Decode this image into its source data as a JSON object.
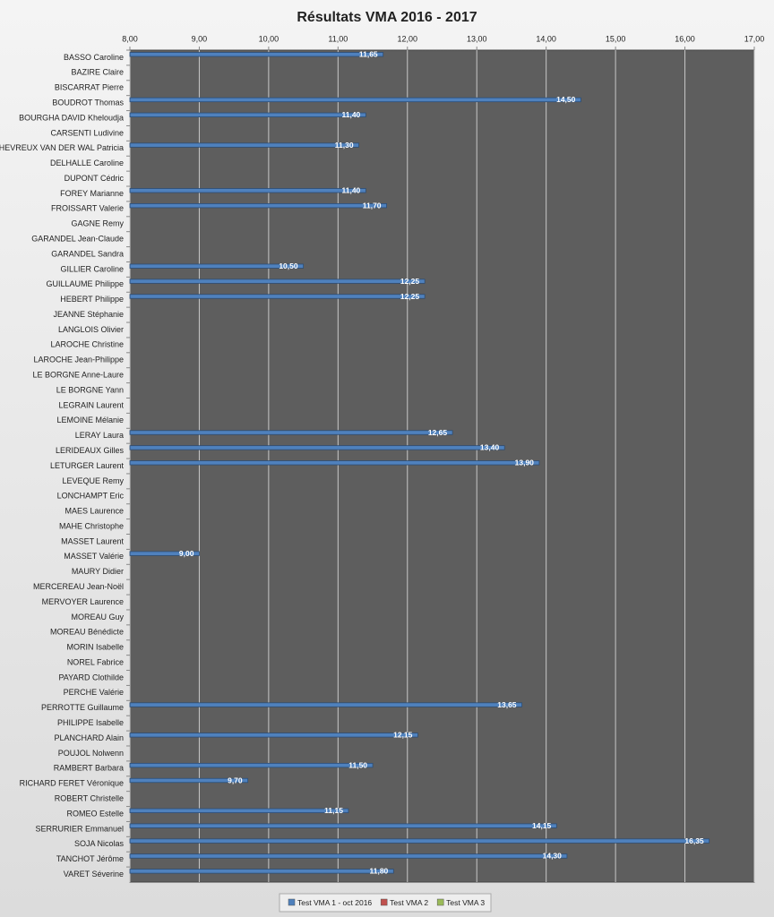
{
  "chart_data": {
    "type": "bar",
    "orientation": "horizontal",
    "title": "Résultats VMA 2016 - 2017",
    "categories": [
      "BASSO Caroline",
      "BAZIRE Claire",
      "BISCARRAT Pierre",
      "BOUDROT Thomas",
      "BOURGHA DAVID Kheloudja",
      "CARSENTI Ludivine",
      "CHEVREUX VAN DER WAL Patricia",
      "DELHALLE Caroline",
      "DUPONT Cédric",
      "FOREY Marianne",
      "FROISSART Valerie",
      "GAGNE Remy",
      "GARANDEL Jean-Claude",
      "GARANDEL Sandra",
      "GILLIER Caroline",
      "GUILLAUME Philippe",
      "HEBERT Philippe",
      "JEANNE Stéphanie",
      "LANGLOIS Olivier",
      "LAROCHE Christine",
      "LAROCHE Jean-Philippe",
      "LE BORGNE Anne-Laure",
      "LE BORGNE Yann",
      "LEGRAIN Laurent",
      "LEMOINE Mélanie",
      "LERAY Laura",
      "LERIDEAUX Gilles",
      "LETURGER Laurent",
      "LEVEQUE Remy",
      "LONCHAMPT Eric",
      "MAES Laurence",
      "MAHE Christophe",
      "MASSET Laurent",
      "MASSET Valérie",
      "MAURY Didier",
      "MERCEREAU Jean-Noël",
      "MERVOYER Laurence",
      "MOREAU Guy",
      "MOREAU Bénédicte",
      "MORIN Isabelle",
      "NOREL Fabrice",
      "PAYARD Clothilde",
      "PERCHE Valérie",
      "PERROTTE Guillaume",
      "PHILIPPE Isabelle",
      "PLANCHARD Alain",
      "POUJOL Nolwenn",
      "RAMBERT Barbara",
      "RICHARD FERET Véronique",
      "ROBERT Christelle",
      "ROMEO Estelle",
      "SERRURIER Emmanuel",
      "SOJA Nicolas",
      "TANCHOT Jérôme",
      "VARET Séverine"
    ],
    "series": [
      {
        "name": "Test VMA 1 - oct 2016",
        "color": "#4f81bd",
        "values": [
          11.65,
          null,
          null,
          14.5,
          11.4,
          null,
          11.3,
          null,
          null,
          11.4,
          11.7,
          null,
          null,
          null,
          10.5,
          12.25,
          12.25,
          null,
          null,
          null,
          null,
          null,
          null,
          null,
          null,
          12.65,
          13.4,
          13.9,
          null,
          null,
          null,
          null,
          null,
          9.0,
          null,
          null,
          null,
          null,
          null,
          null,
          null,
          null,
          null,
          13.65,
          null,
          12.15,
          null,
          11.5,
          9.7,
          null,
          11.15,
          14.15,
          16.35,
          14.3,
          11.8
        ],
        "value_labels": [
          "11,65",
          null,
          null,
          "14,50",
          "11,40",
          null,
          "11,30",
          null,
          null,
          "11,40",
          "11,70",
          null,
          null,
          null,
          "10,50",
          "12,25",
          "12,25",
          null,
          null,
          null,
          null,
          null,
          null,
          null,
          null,
          "12,65",
          "13,40",
          "13,90",
          null,
          null,
          null,
          null,
          null,
          "9,00",
          null,
          null,
          null,
          null,
          null,
          null,
          null,
          null,
          null,
          "13,65",
          null,
          "12,15",
          null,
          "11,50",
          "9,70",
          null,
          "11,15",
          "14,15",
          "16,35",
          "14,30",
          "11,80"
        ]
      },
      {
        "name": "Test VMA 2",
        "color": "#c0504d",
        "values": [
          null,
          null,
          null,
          null,
          null,
          null,
          null,
          null,
          null,
          null,
          null,
          null,
          null,
          null,
          null,
          null,
          null,
          null,
          null,
          null,
          null,
          null,
          null,
          null,
          null,
          null,
          null,
          null,
          null,
          null,
          null,
          null,
          null,
          null,
          null,
          null,
          null,
          null,
          null,
          null,
          null,
          null,
          null,
          null,
          null,
          null,
          null,
          null,
          null,
          null,
          null,
          null,
          null,
          null,
          null
        ]
      },
      {
        "name": "Test VMA 3",
        "color": "#9bbb59",
        "values": [
          null,
          null,
          null,
          null,
          null,
          null,
          null,
          null,
          null,
          null,
          null,
          null,
          null,
          null,
          null,
          null,
          null,
          null,
          null,
          null,
          null,
          null,
          null,
          null,
          null,
          null,
          null,
          null,
          null,
          null,
          null,
          null,
          null,
          null,
          null,
          null,
          null,
          null,
          null,
          null,
          null,
          null,
          null,
          null,
          null,
          null,
          null,
          null,
          null,
          null,
          null,
          null,
          null,
          null,
          null
        ]
      }
    ],
    "xlim": [
      8,
      17
    ],
    "xticks": [
      {
        "value": 8,
        "label": "8,00"
      },
      {
        "value": 9,
        "label": "9,00"
      },
      {
        "value": 10,
        "label": "10,00"
      },
      {
        "value": 11,
        "label": "11,00"
      },
      {
        "value": 12,
        "label": "12,00"
      },
      {
        "value": 13,
        "label": "13,00"
      },
      {
        "value": 14,
        "label": "14,00"
      },
      {
        "value": 15,
        "label": "15,00"
      },
      {
        "value": 16,
        "label": "16,00"
      },
      {
        "value": 17,
        "label": "17,00"
      }
    ],
    "grid": true,
    "legend": "bottom"
  }
}
